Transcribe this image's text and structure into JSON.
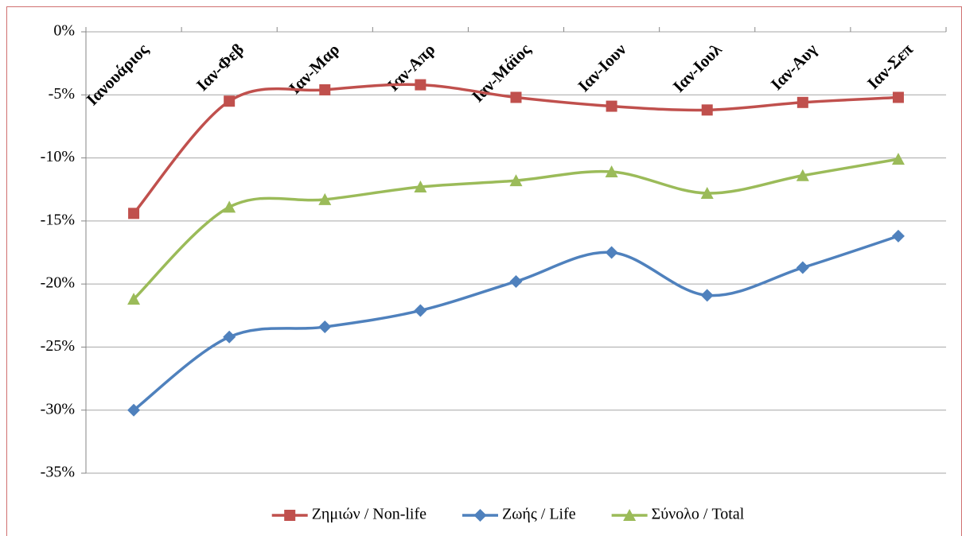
{
  "chart_data": {
    "type": "line",
    "categories": [
      "Ιανουάριος",
      "Ιαν-Φεβ",
      "Ιαν-Μαρ",
      "Ιαν-Απρ",
      "Ιαν-Μάϊος",
      "Ιαν-Ιουν",
      "Ιαν-Ιουλ",
      "Ιαν-Αυγ",
      "Ιαν-Σεπ"
    ],
    "series": [
      {
        "name": "Ζημιών / Non-life",
        "color": "#c0504d",
        "marker": "square",
        "values": [
          -14.4,
          -5.5,
          -4.6,
          -4.2,
          -5.2,
          -5.9,
          -6.2,
          -5.6,
          -5.2
        ]
      },
      {
        "name": "Ζωής / Life",
        "color": "#4f81bd",
        "marker": "diamond",
        "values": [
          -30.0,
          -24.2,
          -23.4,
          -22.1,
          -19.8,
          -17.5,
          -20.9,
          -18.7,
          -16.2
        ]
      },
      {
        "name": "Σύνολο / Total",
        "color": "#9bbb59",
        "marker": "triangle",
        "values": [
          -21.2,
          -13.9,
          -13.3,
          -12.3,
          -11.8,
          -11.1,
          -12.8,
          -11.4,
          -10.1
        ]
      }
    ],
    "ylim": [
      -35,
      0
    ],
    "yticks": [
      {
        "value": 0,
        "label": "0%"
      },
      {
        "value": -5,
        "label": "-5%"
      },
      {
        "value": -10,
        "label": "-10%"
      },
      {
        "value": -15,
        "label": "-15%"
      },
      {
        "value": -20,
        "label": "-20%"
      },
      {
        "value": -25,
        "label": "-25%"
      },
      {
        "value": -30,
        "label": "-30%"
      },
      {
        "value": -35,
        "label": "-35%"
      }
    ],
    "grid": true,
    "smooth": true,
    "legend": "bottom"
  }
}
